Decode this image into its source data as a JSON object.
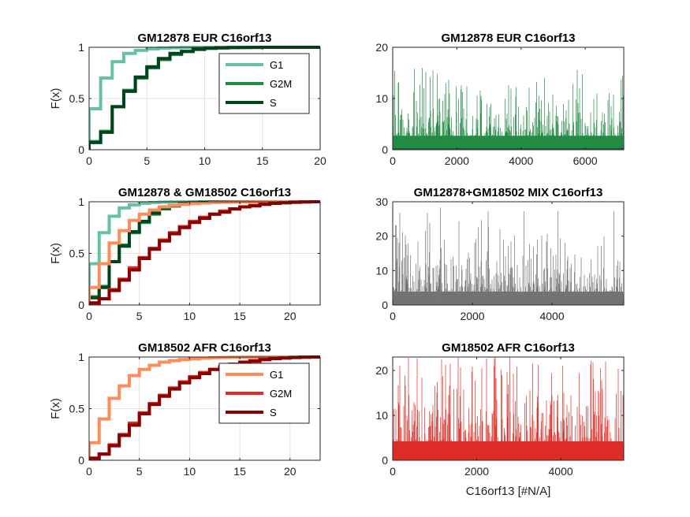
{
  "chart_data": [
    {
      "id": "p1",
      "type": "line",
      "subtype": "ecdf-step",
      "title": "GM12878 EUR C16orf13",
      "xlabel": "",
      "ylabel": "F(x)",
      "xlim": [
        0,
        20
      ],
      "ylim": [
        0,
        1
      ],
      "xticks": [
        0,
        5,
        10,
        15,
        20
      ],
      "yticks": [
        0,
        0.5,
        1
      ],
      "grid": true,
      "legend": {
        "placement": "top-right",
        "entries": [
          "G1",
          "G2M",
          "S"
        ]
      },
      "series": [
        {
          "name": "G1",
          "color": "#66c2a4",
          "x": [
            0,
            1,
            2,
            3,
            4,
            5,
            6,
            7,
            8,
            9,
            10,
            11,
            12,
            13,
            14,
            15
          ],
          "y": [
            0.4,
            0.7,
            0.86,
            0.94,
            0.97,
            0.985,
            0.992,
            0.996,
            0.998,
            0.999,
            1,
            1,
            1,
            1,
            1,
            1
          ]
        },
        {
          "name": "G2M",
          "color": "#238b45",
          "x": [
            0,
            1,
            2,
            3,
            4,
            5,
            6,
            7,
            8,
            9,
            10,
            11,
            12,
            13,
            14,
            15,
            16
          ],
          "y": [
            0.08,
            0.18,
            0.42,
            0.58,
            0.7,
            0.8,
            0.88,
            0.93,
            0.96,
            0.98,
            0.99,
            0.994,
            0.997,
            0.998,
            0.999,
            1,
            1
          ]
        },
        {
          "name": "S",
          "color": "#00441b",
          "x": [
            0,
            1,
            2,
            3,
            4,
            5,
            6,
            7,
            8,
            9,
            10,
            11,
            12,
            13,
            14,
            15,
            16
          ],
          "y": [
            0.07,
            0.17,
            0.42,
            0.57,
            0.71,
            0.81,
            0.89,
            0.94,
            0.96,
            0.98,
            0.99,
            0.994,
            0.997,
            0.998,
            0.999,
            1,
            1
          ]
        }
      ]
    },
    {
      "id": "p2",
      "type": "bar",
      "subtype": "dense-series",
      "title": "GM12878 EUR C16orf13",
      "xlabel": "",
      "ylabel": "",
      "xlim": [
        0,
        7200
      ],
      "ylim": [
        0,
        20
      ],
      "xticks": [
        0,
        2000,
        4000,
        6000
      ],
      "yticks": [
        0,
        10,
        20
      ],
      "color": "#238b45",
      "n": 7200,
      "approx_mean": 4.2,
      "approx_max": 16
    },
    {
      "id": "p3",
      "type": "line",
      "subtype": "ecdf-step",
      "title": "GM12878 & GM18502 C16orf13",
      "xlabel": "",
      "ylabel": "F(x)",
      "xlim": [
        0,
        23
      ],
      "ylim": [
        0,
        1
      ],
      "xticks": [
        0,
        5,
        10,
        15,
        20
      ],
      "yticks": [
        0,
        0.5,
        1
      ],
      "grid": true,
      "series": [
        {
          "color": "#66c2a4",
          "x": [
            0,
            1,
            2,
            3,
            4,
            5,
            6,
            7,
            8,
            9,
            10,
            11,
            12,
            13,
            14,
            15
          ],
          "y": [
            0.4,
            0.7,
            0.86,
            0.94,
            0.97,
            0.985,
            0.992,
            0.996,
            0.998,
            0.999,
            1,
            1,
            1,
            1,
            1,
            1
          ]
        },
        {
          "color": "#238b45",
          "x": [
            0,
            1,
            2,
            3,
            4,
            5,
            6,
            7,
            8,
            9,
            10,
            11,
            12,
            13,
            14,
            15,
            16
          ],
          "y": [
            0.08,
            0.18,
            0.42,
            0.58,
            0.7,
            0.8,
            0.88,
            0.93,
            0.96,
            0.98,
            0.99,
            0.994,
            0.997,
            0.998,
            0.999,
            1,
            1
          ]
        },
        {
          "color": "#00441b",
          "x": [
            0,
            1,
            2,
            3,
            4,
            5,
            6,
            7,
            8,
            9,
            10,
            11,
            12,
            13,
            14,
            15,
            16
          ],
          "y": [
            0.07,
            0.17,
            0.42,
            0.57,
            0.71,
            0.81,
            0.89,
            0.94,
            0.96,
            0.98,
            0.99,
            0.994,
            0.997,
            0.998,
            0.999,
            1,
            1
          ]
        },
        {
          "color": "#fc8d59",
          "x": [
            0,
            1,
            2,
            3,
            4,
            5,
            6,
            7,
            8,
            9,
            10,
            11,
            12,
            13,
            14,
            15,
            16,
            17,
            18,
            19,
            20
          ],
          "y": [
            0.17,
            0.4,
            0.6,
            0.72,
            0.82,
            0.88,
            0.92,
            0.95,
            0.965,
            0.975,
            0.983,
            0.989,
            0.993,
            0.995,
            0.997,
            0.998,
            0.999,
            1,
            1,
            1,
            1
          ]
        },
        {
          "color": "#de2d26",
          "x": [
            0,
            1,
            2,
            3,
            4,
            5,
            6,
            7,
            8,
            9,
            10,
            11,
            12,
            13,
            14,
            15,
            16,
            17,
            18,
            19,
            20,
            21,
            22,
            23
          ],
          "y": [
            0.02,
            0.06,
            0.15,
            0.25,
            0.36,
            0.46,
            0.55,
            0.63,
            0.7,
            0.76,
            0.81,
            0.85,
            0.88,
            0.91,
            0.93,
            0.95,
            0.965,
            0.975,
            0.985,
            0.99,
            0.995,
            0.998,
            1,
            1
          ]
        },
        {
          "color": "#8b0000",
          "x": [
            0,
            1,
            2,
            3,
            4,
            5,
            6,
            7,
            8,
            9,
            10,
            11,
            12,
            13,
            14,
            15,
            16,
            17,
            18,
            19,
            20,
            21,
            22,
            23
          ],
          "y": [
            0.02,
            0.06,
            0.14,
            0.24,
            0.34,
            0.45,
            0.54,
            0.62,
            0.69,
            0.75,
            0.8,
            0.84,
            0.88,
            0.9,
            0.93,
            0.95,
            0.96,
            0.975,
            0.985,
            0.99,
            0.995,
            0.998,
            1,
            1
          ]
        }
      ]
    },
    {
      "id": "p4",
      "type": "bar",
      "subtype": "dense-series",
      "title": "GM12878+GM18502 MIX C16orf13",
      "xlabel": "",
      "ylabel": "",
      "xlim": [
        0,
        5800
      ],
      "ylim": [
        0,
        30
      ],
      "xticks": [
        0,
        2000,
        4000
      ],
      "yticks": [
        0,
        10,
        20,
        30
      ],
      "color": "#737373",
      "n": 5800,
      "approx_mean": 6,
      "approx_max": 29
    },
    {
      "id": "p5",
      "type": "line",
      "subtype": "ecdf-step",
      "title": "GM18502 AFR C16orf13",
      "xlabel": "",
      "ylabel": "F(x)",
      "xlim": [
        0,
        23
      ],
      "ylim": [
        0,
        1
      ],
      "xticks": [
        0,
        5,
        10,
        15,
        20
      ],
      "yticks": [
        0,
        0.5,
        1
      ],
      "grid": true,
      "legend": {
        "placement": "top-right",
        "entries": [
          "G1",
          "G2M",
          "S"
        ]
      },
      "series": [
        {
          "name": "G1",
          "color": "#fc8d59",
          "x": [
            0,
            1,
            2,
            3,
            4,
            5,
            6,
            7,
            8,
            9,
            10,
            11,
            12,
            13,
            14,
            15,
            16,
            17,
            18,
            19,
            20
          ],
          "y": [
            0.17,
            0.4,
            0.6,
            0.72,
            0.82,
            0.88,
            0.92,
            0.95,
            0.965,
            0.975,
            0.983,
            0.989,
            0.993,
            0.995,
            0.997,
            0.998,
            0.999,
            1,
            1,
            1,
            1
          ]
        },
        {
          "name": "G2M",
          "color": "#de2d26",
          "x": [
            0,
            1,
            2,
            3,
            4,
            5,
            6,
            7,
            8,
            9,
            10,
            11,
            12,
            13,
            14,
            15,
            16,
            17,
            18,
            19,
            20,
            21,
            22,
            23
          ],
          "y": [
            0.02,
            0.06,
            0.15,
            0.25,
            0.36,
            0.46,
            0.55,
            0.63,
            0.7,
            0.76,
            0.81,
            0.85,
            0.88,
            0.91,
            0.93,
            0.95,
            0.965,
            0.975,
            0.985,
            0.99,
            0.995,
            0.998,
            1,
            1
          ]
        },
        {
          "name": "S",
          "color": "#8b0000",
          "x": [
            0,
            1,
            2,
            3,
            4,
            5,
            6,
            7,
            8,
            9,
            10,
            11,
            12,
            13,
            14,
            15,
            16,
            17,
            18,
            19,
            20,
            21,
            22,
            23
          ],
          "y": [
            0.02,
            0.06,
            0.14,
            0.24,
            0.34,
            0.45,
            0.54,
            0.62,
            0.69,
            0.75,
            0.8,
            0.84,
            0.88,
            0.9,
            0.93,
            0.95,
            0.96,
            0.975,
            0.985,
            0.99,
            0.995,
            0.998,
            1,
            1
          ]
        }
      ]
    },
    {
      "id": "p6",
      "type": "bar",
      "subtype": "dense-series",
      "title": "GM18502 AFR C16orf13",
      "xlabel": "C16orf13 [#N/A]",
      "ylabel": "",
      "xlim": [
        0,
        5500
      ],
      "ylim": [
        0,
        23
      ],
      "xticks": [
        0,
        2000,
        4000
      ],
      "yticks": [
        0,
        10,
        20
      ],
      "color": "#de2d26",
      "n": 5500,
      "approx_mean": 6.5,
      "approx_max": 23
    }
  ]
}
